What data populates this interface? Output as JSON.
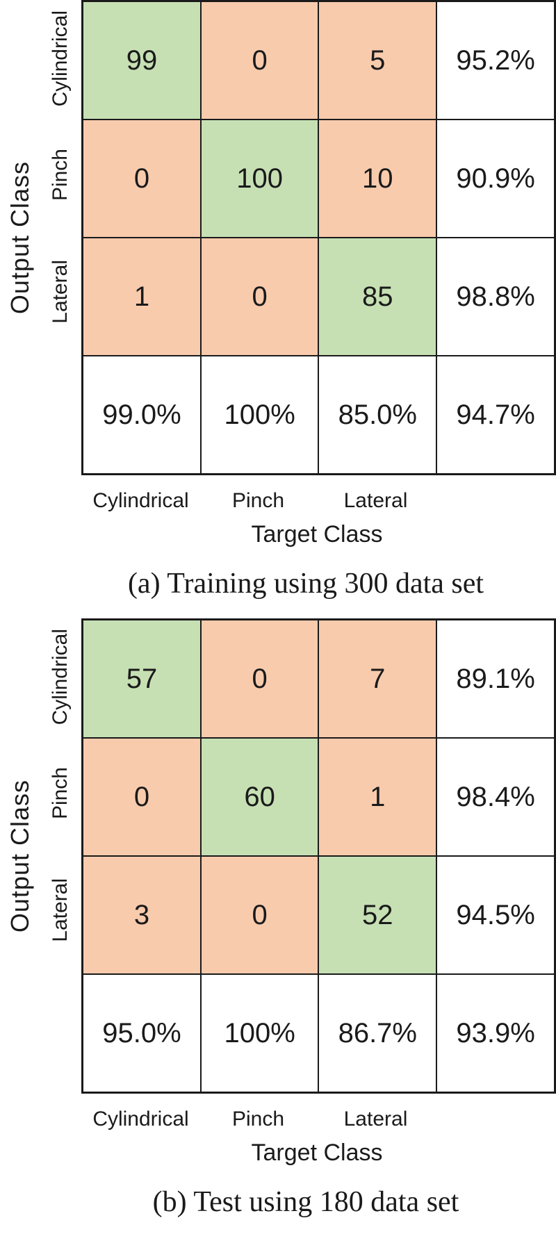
{
  "axis": {
    "output_label": "Output Class",
    "target_label": "Target Class"
  },
  "classes": [
    "Cylindrical",
    "Pinch",
    "Lateral"
  ],
  "colors": {
    "diagonal_green": "#c6e0b4",
    "offdiagonal_orange": "#f8cbad",
    "grid_border": "#1a1a1a",
    "background": "#ffffff"
  },
  "figures": [
    {
      "caption": "(a) Training using 300 data set",
      "rows": [
        [
          "99",
          "0",
          "5",
          "95.2%"
        ],
        [
          "0",
          "100",
          "10",
          "90.9%"
        ],
        [
          "1",
          "0",
          "85",
          "98.8%"
        ],
        [
          "99.0%",
          "100%",
          "85.0%",
          "94.7%"
        ]
      ]
    },
    {
      "caption": "(b) Test using 180 data set",
      "rows": [
        [
          "57",
          "0",
          "7",
          "89.1%"
        ],
        [
          "0",
          "60",
          "1",
          "98.4%"
        ],
        [
          "3",
          "0",
          "52",
          "94.5%"
        ],
        [
          "95.0%",
          "100%",
          "86.7%",
          "93.9%"
        ]
      ]
    }
  ],
  "chart_data": [
    {
      "type": "heatmap",
      "title": "(a) Training using 300 data set",
      "xlabel": "Target Class",
      "ylabel": "Output Class",
      "categories": [
        "Cylindrical",
        "Pinch",
        "Lateral"
      ],
      "matrix_rows_output_by_target": [
        [
          99,
          0,
          5
        ],
        [
          0,
          100,
          10
        ],
        [
          1,
          0,
          85
        ]
      ],
      "row_precision": [
        "95.2%",
        "90.9%",
        "98.8%"
      ],
      "column_recall": [
        "99.0%",
        "100%",
        "85.0%"
      ],
      "overall_accuracy": "94.7%",
      "legend_position": "none",
      "grid": true
    },
    {
      "type": "heatmap",
      "title": "(b) Test using 180 data set",
      "xlabel": "Target Class",
      "ylabel": "Output Class",
      "categories": [
        "Cylindrical",
        "Pinch",
        "Lateral"
      ],
      "matrix_rows_output_by_target": [
        [
          57,
          0,
          7
        ],
        [
          0,
          60,
          1
        ],
        [
          3,
          0,
          52
        ]
      ],
      "row_precision": [
        "89.1%",
        "98.4%",
        "94.5%"
      ],
      "column_recall": [
        "95.0%",
        "100%",
        "86.7%"
      ],
      "overall_accuracy": "93.9%",
      "legend_position": "none",
      "grid": true
    }
  ]
}
